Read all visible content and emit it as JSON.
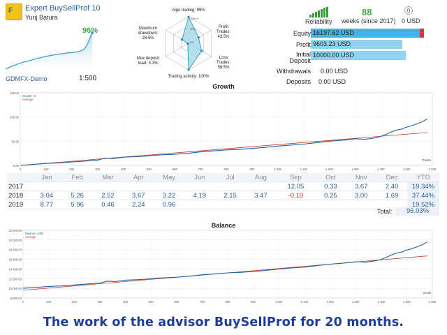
{
  "header": {
    "title": "Expert BuySellProf 10",
    "author": "Yurij Batura",
    "growth_pct": "96%",
    "server": "GDMFX-Demo",
    "leverage": "1:500"
  },
  "radar": {
    "labels": {
      "algo": "Algo trading: 99%",
      "profit": "Profit\nTrades:\n43.5%",
      "loss": "Loss\nTrades:\n56.5%",
      "activity": "Trading activity: 100%",
      "deposit_load": "Max deposit\nload: 3.3%",
      "drawdown": "Maximum\ndrawdown:\n28.5%"
    },
    "scale_labels": [
      "100+%",
      "50%",
      "0%"
    ],
    "values": {
      "algo": 0.99,
      "profit": 0.435,
      "loss": 0.565,
      "activity": 1.0,
      "deposit_load": 0.033,
      "drawdown": 0.285
    }
  },
  "reliability": {
    "label": "Reliability",
    "weeks": "88",
    "weeks_label": "weeks (since 2017)",
    "amount": "0 USD"
  },
  "account": {
    "equity": {
      "label": "Equity",
      "value": "16197.62 USD",
      "fraction": 1.0
    },
    "profit": {
      "label": "Profit",
      "value": "9603.23 USD",
      "fraction": 0.84
    },
    "initial": {
      "label": "Initial\nDeposit",
      "value": "10000.00 USD",
      "fraction": 0.87
    },
    "withdrawals": {
      "label": "Withdrawals",
      "value": "0.00 USD"
    },
    "deposits": {
      "label": "Deposits",
      "value": "0.00 USD"
    }
  },
  "growth_chart_title": "Growth",
  "balance_chart_title": "Balance",
  "table": {
    "headers": [
      "",
      "Jan",
      "Feb",
      "Mar",
      "Apr",
      "May",
      "Jun",
      "Jul",
      "Aug",
      "Sep",
      "Oct",
      "Nov",
      "Dec",
      "YTD"
    ],
    "rows": [
      {
        "year": "2017",
        "cells": [
          "",
          "",
          "",
          "",
          "",
          "",
          "",
          "",
          "12.05",
          "0.33",
          "3.67",
          "2.40"
        ],
        "ytd": "19.34%"
      },
      {
        "year": "2018",
        "cells": [
          "3.04",
          "5.26",
          "2.52",
          "3.67",
          "3.22",
          "4.19",
          "2.15",
          "3.47",
          "-0.10",
          "0.25",
          "3.00",
          "1.69"
        ],
        "ytd": "37.44%"
      },
      {
        "year": "2019",
        "cells": [
          "8.77",
          "5.96",
          "0.46",
          "2.24",
          "0.96",
          "",
          "",
          "",
          "",
          "",
          "",
          ""
        ],
        "ytd": "19.52%"
      }
    ],
    "total_label": "Total:",
    "total_value": "96.03%"
  },
  "caption": "The work of the advisor BuySellProf for 20 months.",
  "chart_data": [
    {
      "type": "line",
      "title": "Growth",
      "xlabel": "Trades",
      "ylabel": "",
      "xlim": [
        0,
        1600
      ],
      "ylim": [
        0,
        150
      ],
      "xticks": [
        "0",
        "100",
        "200",
        "300",
        "400",
        "500",
        "600",
        "700",
        "800",
        "900",
        "1 000",
        "1 100",
        "1 200",
        "1 300",
        "1 400",
        "1 500",
        "1 600"
      ],
      "yticks": [
        "0.00",
        "50.00",
        "100.00",
        "150.00"
      ],
      "legend": [
        "Growth, %",
        "Average"
      ],
      "series": [
        {
          "name": "Growth, %",
          "color": "#1e63a8",
          "x": [
            0,
            50,
            100,
            150,
            200,
            250,
            300,
            330,
            360,
            400,
            450,
            480,
            520,
            560,
            600,
            650,
            700,
            750,
            800,
            850,
            900,
            950,
            1000,
            1050,
            1100,
            1150,
            1200,
            1250,
            1300,
            1340,
            1380,
            1400,
            1420,
            1440,
            1460,
            1480,
            1500,
            1520,
            1540,
            1560,
            1580
          ],
          "values": [
            0,
            2,
            4,
            5,
            7,
            9,
            11,
            15,
            14,
            17,
            18,
            19,
            21,
            22,
            23,
            25,
            28,
            30,
            32,
            33,
            35,
            37,
            40,
            42,
            44,
            47,
            50,
            52,
            55,
            54,
            57,
            60,
            64,
            69,
            73,
            75,
            79,
            82,
            86,
            90,
            96
          ]
        },
        {
          "name": "Average",
          "color": "#c0392b",
          "x": [
            0,
            1580
          ],
          "values": [
            0,
            68
          ]
        }
      ]
    },
    {
      "type": "line",
      "title": "Balance",
      "xlabel": "Deals",
      "ylabel": "",
      "xlim": [
        0,
        1600
      ],
      "ylim": [
        8000,
        22000
      ],
      "xticks": [
        "0",
        "100",
        "200",
        "300",
        "400",
        "500",
        "600",
        "700",
        "800",
        "900",
        "1 000",
        "1 100",
        "1 200",
        "1 300",
        "1 400",
        "1 500",
        "1 600"
      ],
      "yticks": [
        "8 000.00",
        "10 000.00",
        "12 000.00",
        "14 000.00",
        "16 000.00",
        "18 000.00",
        "20 000.00",
        "22 000.00"
      ],
      "legend": [
        "Balance, USD",
        "Average"
      ],
      "series": [
        {
          "name": "Balance, USD",
          "color": "#1e63a8",
          "x": [
            0,
            50,
            100,
            150,
            200,
            250,
            300,
            330,
            360,
            400,
            450,
            480,
            520,
            560,
            600,
            650,
            700,
            750,
            800,
            850,
            900,
            950,
            1000,
            1050,
            1100,
            1150,
            1200,
            1250,
            1300,
            1340,
            1380,
            1400,
            1420,
            1440,
            1460,
            1480,
            1500,
            1520,
            1540,
            1560,
            1580
          ],
          "values": [
            10000,
            10200,
            10400,
            10500,
            10700,
            10900,
            11100,
            11500,
            11400,
            11700,
            11800,
            11900,
            12100,
            12200,
            12300,
            12500,
            12800,
            13000,
            13200,
            13300,
            13500,
            13700,
            14000,
            14200,
            14400,
            14700,
            15000,
            15200,
            15500,
            15400,
            15700,
            16000,
            16400,
            16900,
            17300,
            17500,
            17900,
            18200,
            18600,
            19000,
            19600
          ]
        },
        {
          "name": "Average",
          "color": "#c0392b",
          "x": [
            0,
            1580
          ],
          "values": [
            9600,
            16700
          ]
        }
      ]
    }
  ]
}
